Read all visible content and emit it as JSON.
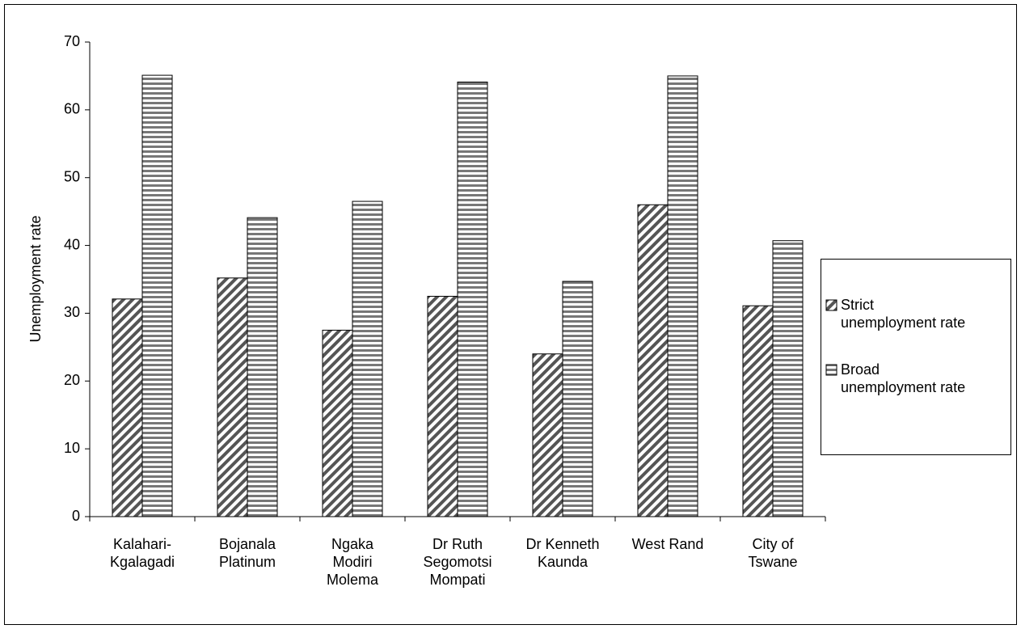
{
  "chart_data": {
    "type": "bar",
    "y_label": "Unemployment rate",
    "categories": [
      "Kalahari-\nKgalagadi",
      "Bojanala\nPlatinum",
      "Ngaka\nModiri\nMolema",
      "Dr Ruth\nSegomotsi\nMompati",
      "Dr Kenneth\nKaunda",
      "West Rand",
      "City of\nTswane"
    ],
    "series": [
      {
        "name": "Strict\nunemployment rate",
        "color": "#000000",
        "pattern": "diagonal",
        "values": [
          32.1,
          35.2,
          27.5,
          32.5,
          24,
          46,
          31.1
        ]
      },
      {
        "name": "Broad\nunemployment rate",
        "color": "#000000",
        "pattern": "horizontal",
        "values": [
          65.1,
          44.1,
          46.5,
          64.1,
          34.7,
          65,
          40.7
        ]
      }
    ],
    "ylim": [
      0,
      70
    ],
    "yticks": [
      0,
      10,
      20,
      30,
      40,
      50,
      60,
      70
    ],
    "grid": false,
    "legend": "right"
  }
}
